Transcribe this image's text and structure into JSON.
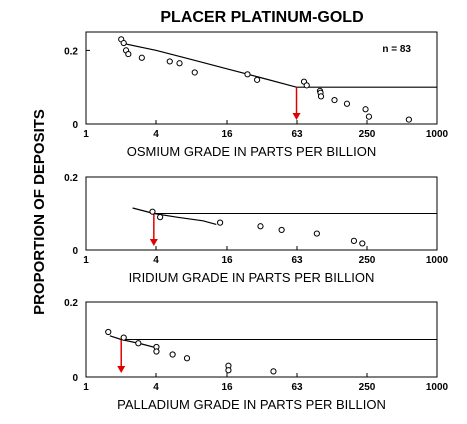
{
  "figure": {
    "title": "PLACER PLATINUM-GOLD",
    "ylabel": "PROPORTION OF DEPOSITS"
  },
  "chart_data": [
    {
      "type": "scatter",
      "xlabel": "OSMIUM GRADE IN PARTS PER BILLION",
      "xscale": "log",
      "xlim": [
        1,
        1000
      ],
      "ylim": [
        0,
        0.25
      ],
      "x_tick_labels": [
        "1",
        "4",
        "16",
        "63",
        "250",
        "1000"
      ],
      "y_tick_labels": [
        "0",
        "0.2"
      ],
      "annotation": "n = 83",
      "median_marker_x": 63,
      "points": [
        {
          "x": 2.0,
          "y": 0.23
        },
        {
          "x": 2.1,
          "y": 0.22
        },
        {
          "x": 2.2,
          "y": 0.2
        },
        {
          "x": 2.3,
          "y": 0.19
        },
        {
          "x": 3.0,
          "y": 0.18
        },
        {
          "x": 5.2,
          "y": 0.17
        },
        {
          "x": 6.3,
          "y": 0.165
        },
        {
          "x": 8.5,
          "y": 0.14
        },
        {
          "x": 24,
          "y": 0.135
        },
        {
          "x": 29,
          "y": 0.12
        },
        {
          "x": 73,
          "y": 0.115
        },
        {
          "x": 77,
          "y": 0.105
        },
        {
          "x": 100,
          "y": 0.09
        },
        {
          "x": 101,
          "y": 0.085
        },
        {
          "x": 102,
          "y": 0.075
        },
        {
          "x": 133,
          "y": 0.065
        },
        {
          "x": 170,
          "y": 0.055
        },
        {
          "x": 245,
          "y": 0.04
        },
        {
          "x": 262,
          "y": 0.02
        },
        {
          "x": 575,
          "y": 0.012
        }
      ],
      "fit_curve": [
        {
          "x": 2.0,
          "y": 0.22
        },
        {
          "x": 4,
          "y": 0.2
        },
        {
          "x": 8,
          "y": 0.175
        },
        {
          "x": 16,
          "y": 0.15
        },
        {
          "x": 32,
          "y": 0.125
        },
        {
          "x": 63,
          "y": 0.1
        },
        {
          "x": 100,
          "y": 0.1
        },
        {
          "x": 1000,
          "y": 0.1
        }
      ]
    },
    {
      "type": "scatter",
      "xlabel": "IRIDIUM GRADE IN PARTS PER BILLION",
      "xscale": "log",
      "xlim": [
        1,
        1000
      ],
      "ylim": [
        0,
        0.2
      ],
      "x_tick_labels": [
        "1",
        "4",
        "16",
        "63",
        "250",
        "1000"
      ],
      "y_tick_labels": [
        "0",
        "0.2"
      ],
      "median_marker_x": 3.8,
      "points": [
        {
          "x": 3.7,
          "y": 0.105
        },
        {
          "x": 4.3,
          "y": 0.09
        },
        {
          "x": 14,
          "y": 0.075
        },
        {
          "x": 31,
          "y": 0.065
        },
        {
          "x": 47,
          "y": 0.055
        },
        {
          "x": 94,
          "y": 0.045
        },
        {
          "x": 195,
          "y": 0.025
        },
        {
          "x": 230,
          "y": 0.018
        }
      ],
      "fit_curve": [
        {
          "x": 2.5,
          "y": 0.115
        },
        {
          "x": 3.8,
          "y": 0.1
        },
        {
          "x": 6,
          "y": 0.09
        },
        {
          "x": 10,
          "y": 0.08
        },
        {
          "x": 13,
          "y": 0.07
        }
      ],
      "reference_line": {
        "y": 0.1,
        "from_x": 3.8,
        "to_x": 1000
      }
    },
    {
      "type": "scatter",
      "xlabel": "PALLADIUM GRADE IN PARTS PER BILLION",
      "xscale": "log",
      "xlim": [
        1,
        1000
      ],
      "ylim": [
        0,
        0.2
      ],
      "x_tick_labels": [
        "1",
        "4",
        "16",
        "63",
        "250",
        "1000"
      ],
      "y_tick_labels": [
        "0",
        "0.2"
      ],
      "median_marker_x": 2.0,
      "points": [
        {
          "x": 1.55,
          "y": 0.12
        },
        {
          "x": 2.1,
          "y": 0.105
        },
        {
          "x": 2.8,
          "y": 0.09
        },
        {
          "x": 4.0,
          "y": 0.08
        },
        {
          "x": 4.0,
          "y": 0.068
        },
        {
          "x": 5.5,
          "y": 0.06
        },
        {
          "x": 7.3,
          "y": 0.05
        },
        {
          "x": 16.5,
          "y": 0.03
        },
        {
          "x": 16.5,
          "y": 0.018
        },
        {
          "x": 40,
          "y": 0.015
        }
      ],
      "fit_curve": [
        {
          "x": 1.6,
          "y": 0.11
        },
        {
          "x": 2.0,
          "y": 0.1
        },
        {
          "x": 3,
          "y": 0.088
        },
        {
          "x": 4,
          "y": 0.078
        }
      ],
      "reference_line": {
        "y": 0.1,
        "from_x": 2.0,
        "to_x": 1000
      }
    }
  ]
}
